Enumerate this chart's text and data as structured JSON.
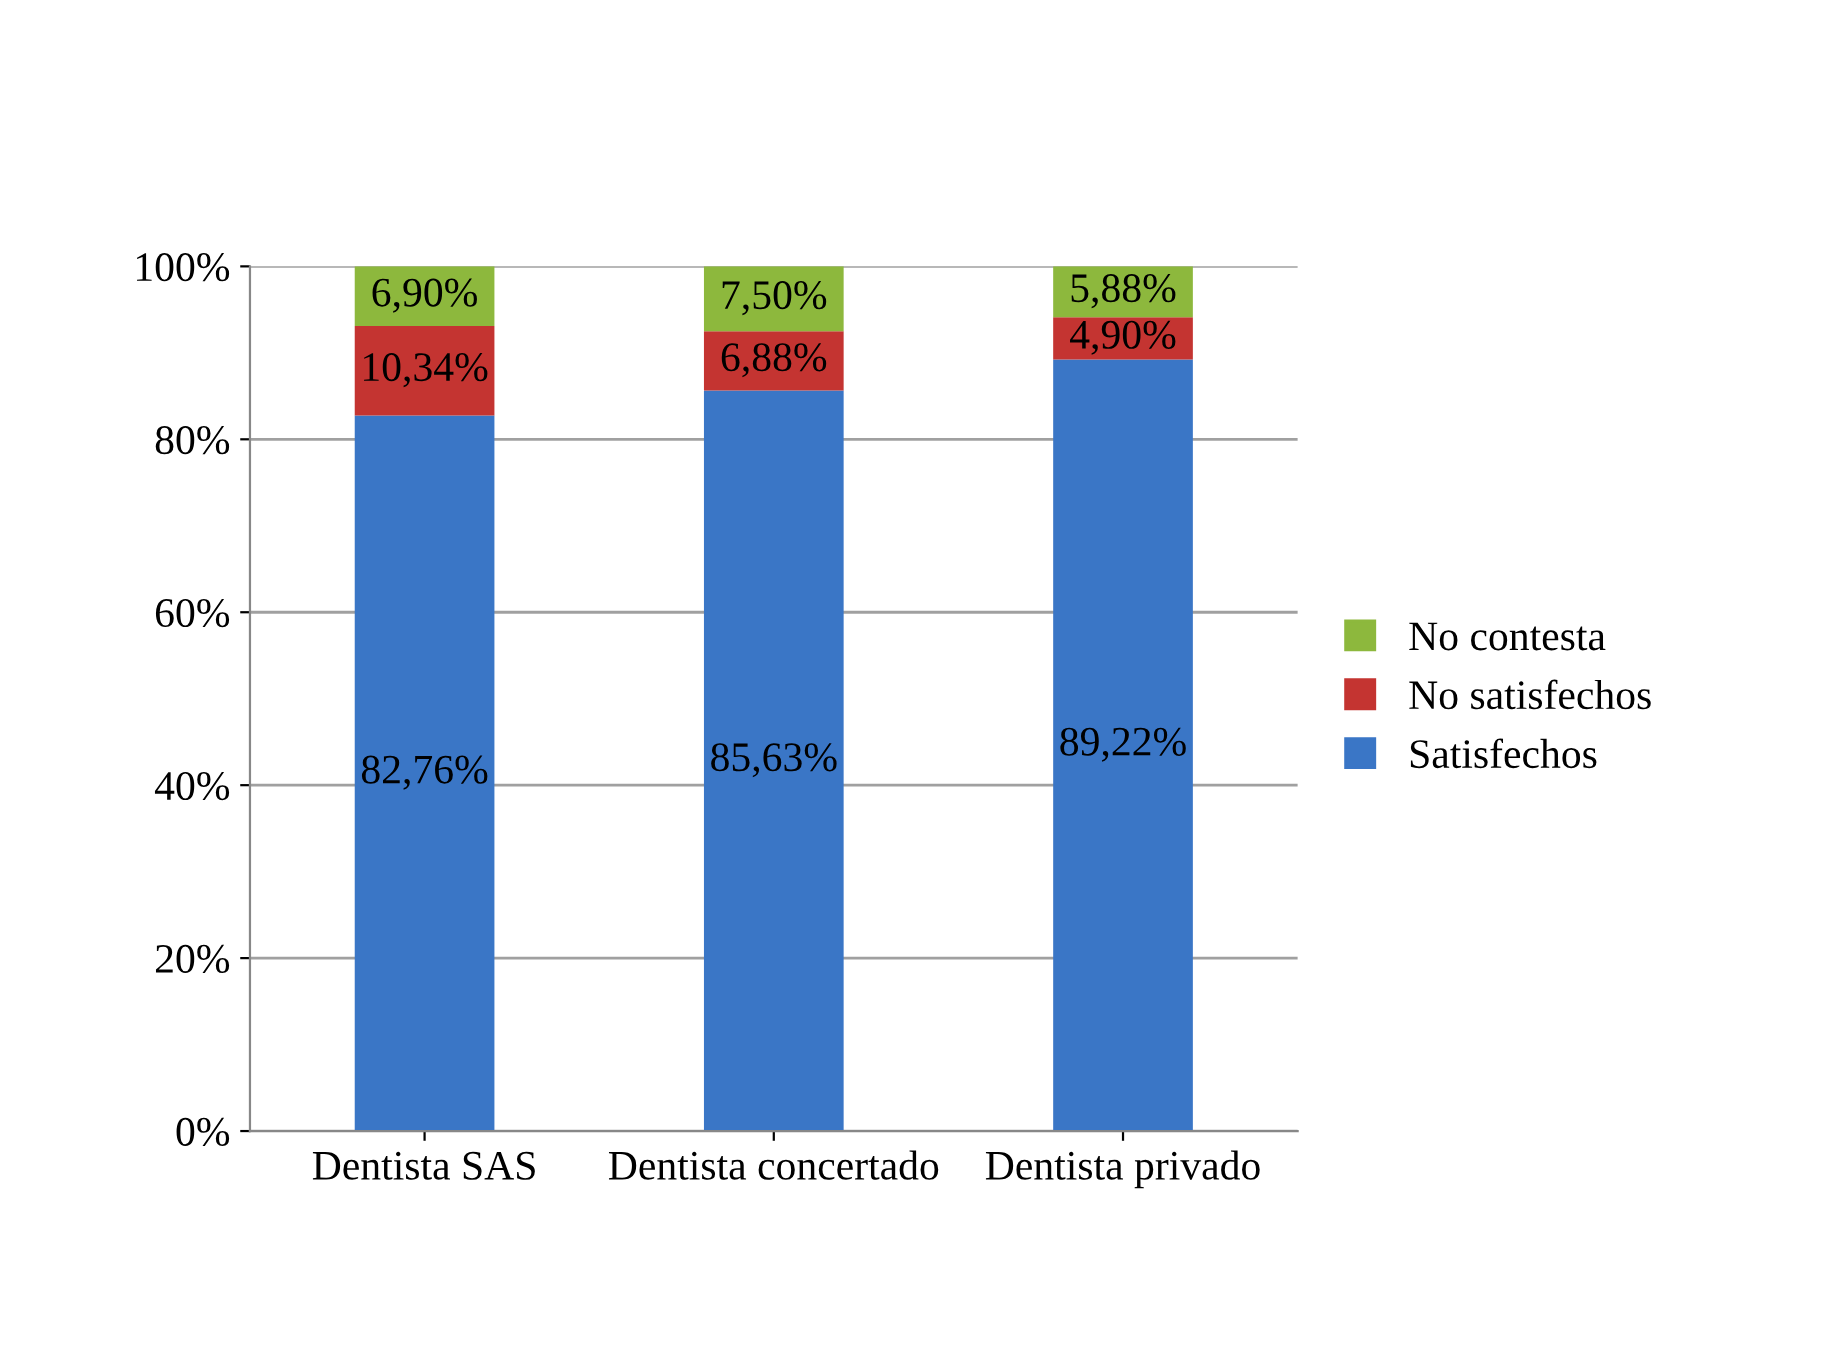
{
  "chart_data": {
    "type": "bar",
    "stacked": true,
    "categories": [
      "Dentista SAS",
      "Dentista concertado",
      "Dentista privado"
    ],
    "series": [
      {
        "name": "Satisfechos",
        "color": "#3a76c6",
        "values": [
          82.76,
          85.63,
          89.22
        ],
        "value_labels": [
          "82,76%",
          "85,63%",
          "89,22%"
        ]
      },
      {
        "name": "No satisfechos",
        "color": "#c43431",
        "values": [
          10.34,
          6.88,
          4.9
        ],
        "value_labels": [
          "10,34%",
          "6,88%",
          "4,90%"
        ]
      },
      {
        "name": "No contesta",
        "color": "#8db83d",
        "values": [
          6.9,
          7.5,
          5.88
        ],
        "value_labels": [
          "6,90%",
          "7,50%",
          "5,88%"
        ]
      }
    ],
    "ylim": [
      0,
      100
    ],
    "yticks": [
      {
        "value": 0,
        "label": "0%"
      },
      {
        "value": 20,
        "label": "20%"
      },
      {
        "value": 40,
        "label": "40%"
      },
      {
        "value": 60,
        "label": "60%"
      },
      {
        "value": 80,
        "label": "80%"
      },
      {
        "value": 100,
        "label": "100%"
      }
    ],
    "grid": "y",
    "legend": "right"
  }
}
